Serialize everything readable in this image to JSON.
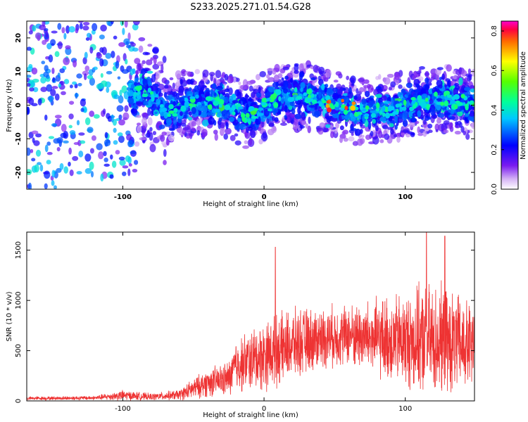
{
  "chart_data": [
    {
      "type": "heatmap",
      "title": "S233.2025.271.01.54.G28",
      "xlabel": "Height of straight line (km)",
      "ylabel": "Frequency (Hz)",
      "xlim": [
        -168,
        149
      ],
      "ylim": [
        -25,
        25
      ],
      "x_ticks": [
        "-100",
        "0",
        "100"
      ],
      "y_ticks": [
        "20",
        "10",
        "0",
        "-10",
        "-20"
      ],
      "colorbar": {
        "label": "Normalized spectral amplitude",
        "range": [
          0.0,
          0.85
        ],
        "ticks": [
          "0.0",
          "0.2",
          "0.4",
          "0.6",
          "0.8"
        ]
      },
      "ridge": [
        {
          "x": -140,
          "f": 5
        },
        {
          "x": -100,
          "f": 2
        },
        {
          "x": -85,
          "f": 5
        },
        {
          "x": -70,
          "f": -2
        },
        {
          "x": -50,
          "f": 1
        },
        {
          "x": -30,
          "f": 0
        },
        {
          "x": -10,
          "f": -3
        },
        {
          "x": 10,
          "f": 2
        },
        {
          "x": 30,
          "f": 3
        },
        {
          "x": 50,
          "f": 0
        },
        {
          "x": 70,
          "f": -2
        },
        {
          "x": 90,
          "f": -1
        },
        {
          "x": 110,
          "f": 1
        },
        {
          "x": 130,
          "f": 2
        },
        {
          "x": 149,
          "f": 0
        }
      ],
      "notes_peak": {
        "x": 55,
        "f": 0,
        "amplitude": 0.85
      }
    },
    {
      "type": "line",
      "title": "",
      "xlabel": "Height of straight line (km)",
      "ylabel": "SNR (10 * v/v)",
      "xlim": [
        -168,
        149
      ],
      "ylim": [
        0,
        1680
      ],
      "x_ticks": [
        "-100",
        "0",
        "100"
      ],
      "y_ticks": [
        "0",
        "500",
        "1000",
        "1500"
      ],
      "series": [
        {
          "color": "#ee3333",
          "envelope": [
            {
              "x": -168,
              "mean": 25,
              "spread": 20
            },
            {
              "x": -120,
              "mean": 30,
              "spread": 25
            },
            {
              "x": -100,
              "mean": 55,
              "spread": 60
            },
            {
              "x": -80,
              "mean": 40,
              "spread": 40
            },
            {
              "x": -60,
              "mean": 60,
              "spread": 60
            },
            {
              "x": -50,
              "mean": 120,
              "spread": 120
            },
            {
              "x": -40,
              "mean": 180,
              "spread": 160
            },
            {
              "x": -25,
              "mean": 220,
              "spread": 200
            },
            {
              "x": -20,
              "mean": 350,
              "spread": 300
            },
            {
              "x": -10,
              "mean": 400,
              "spread": 350
            },
            {
              "x": 0,
              "mean": 450,
              "spread": 400
            },
            {
              "x": 20,
              "mean": 560,
              "spread": 400
            },
            {
              "x": 40,
              "mean": 630,
              "spread": 350
            },
            {
              "x": 60,
              "mean": 660,
              "spread": 350
            },
            {
              "x": 80,
              "mean": 620,
              "spread": 450
            },
            {
              "x": 100,
              "mean": 600,
              "spread": 550
            },
            {
              "x": 120,
              "mean": 600,
              "spread": 650
            },
            {
              "x": 140,
              "mean": 560,
              "spread": 550
            },
            {
              "x": 149,
              "mean": 520,
              "spread": 500
            }
          ],
          "spikes": [
            {
              "x": 8,
              "y": 1530
            },
            {
              "x": 115,
              "y": 1680
            },
            {
              "x": 128,
              "y": 1640
            }
          ]
        }
      ]
    }
  ]
}
